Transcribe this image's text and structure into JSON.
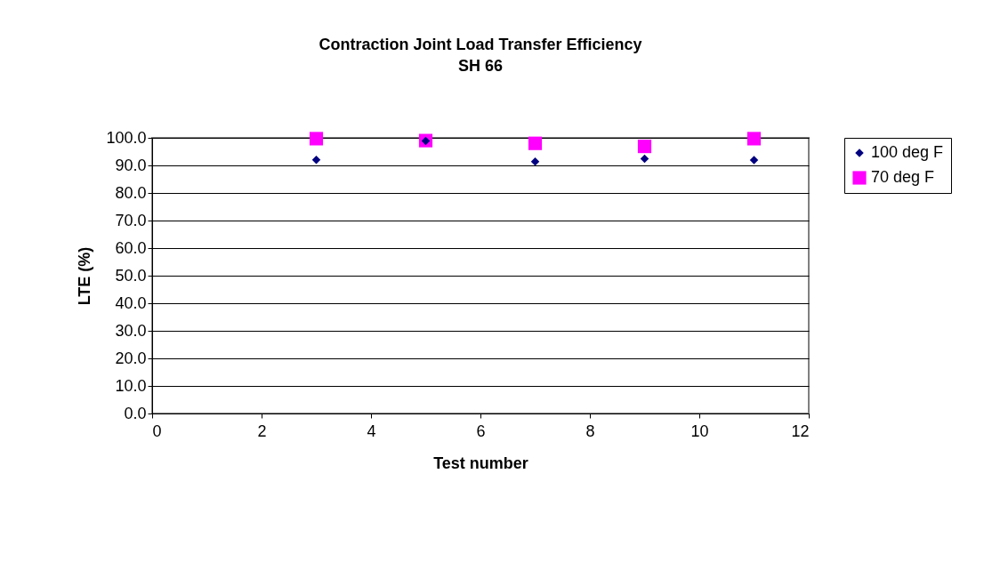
{
  "chart_data": {
    "type": "scatter",
    "title": "Contraction Joint Load Transfer Efficiency",
    "subtitle": "SH 66",
    "xlabel": "Test number",
    "ylabel": "LTE (%)",
    "x": [
      3,
      5,
      7,
      9,
      11
    ],
    "series": [
      {
        "name": "100 deg F",
        "color": "#000080",
        "marker": "diamond",
        "values": [
          92.0,
          98.9,
          91.4,
          92.4,
          91.9
        ]
      },
      {
        "name": "70 deg F",
        "color": "#ff00ff",
        "marker": "square",
        "values": [
          99.7,
          99.0,
          98.0,
          96.9,
          99.7
        ]
      }
    ],
    "xlim": [
      0,
      12
    ],
    "xticks": [
      0,
      2,
      4,
      6,
      8,
      10,
      12
    ],
    "ylim": [
      0,
      100
    ],
    "yticks": [
      {
        "value": 0,
        "label": "0.0"
      },
      {
        "value": 10,
        "label": "10.0"
      },
      {
        "value": 20,
        "label": "20.0"
      },
      {
        "value": 30,
        "label": "30.0"
      },
      {
        "value": 40,
        "label": "40.0"
      },
      {
        "value": 50,
        "label": "50.0"
      },
      {
        "value": 60,
        "label": "60.0"
      },
      {
        "value": 70,
        "label": "70.0"
      },
      {
        "value": 80,
        "label": "80.0"
      },
      {
        "value": 90,
        "label": "90.0"
      },
      {
        "value": 100,
        "label": "100.0"
      }
    ],
    "grid": "y",
    "legend": "right"
  }
}
